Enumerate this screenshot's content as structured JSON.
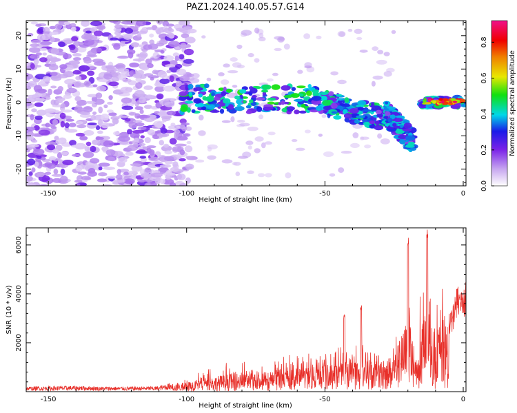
{
  "title": "PAZ1.2024.140.05.57.G14",
  "colors": {
    "snr_line": "#e8302a",
    "spectro_purple": "#7a22e8",
    "spectro_light": "#d4b8f4",
    "axis": "#000000"
  },
  "chart_data": [
    {
      "type": "heatmap",
      "title": "",
      "xlabel": "Height of straight line (km)",
      "ylabel": "Frequency (Hz)",
      "xlim": [
        -158,
        1
      ],
      "ylim": [
        -25,
        24.5
      ],
      "xticks": [
        -150,
        -100,
        -50,
        0
      ],
      "yticks": [
        -20,
        -10,
        0,
        10,
        20
      ],
      "colorbar": {
        "label": "Normalized spectral amplitude",
        "range": [
          0.0,
          0.92
        ],
        "ticks": [
          0.0,
          0.2,
          0.4,
          0.6,
          0.8
        ],
        "colormap": "rainbow (white-purple-blue-cyan-green-yellow-red-magenta)"
      },
      "features": [
        {
          "x_range": [
            -158,
            -102
          ],
          "freq_range": [
            -25,
            24
          ],
          "amplitude": "low, scattered noise"
        },
        {
          "x_range": [
            -102,
            -55
          ],
          "freq_center": 1,
          "freq_halfwidth": 4,
          "amplitude_peak": 0.4
        },
        {
          "x_range": [
            -55,
            -28
          ],
          "freq_center_start": 1,
          "freq_center_end": -5,
          "amplitude_peak": 0.35
        },
        {
          "x_range": [
            -28,
            -18
          ],
          "freq_center_start": -3,
          "freq_center_end": -12,
          "amplitude_peak": 0.3
        },
        {
          "x_range": [
            -15,
            1
          ],
          "freq_center": 0,
          "freq_halfwidth": 1.5,
          "amplitude_peak": 0.92
        }
      ]
    },
    {
      "type": "line",
      "title": "",
      "xlabel": "Height of straight line (km)",
      "ylabel": "SNR (10 * v/v)",
      "xlim": [
        -158,
        1
      ],
      "ylim": [
        0,
        6700
      ],
      "xticks": [
        -150,
        -100,
        -50,
        0
      ],
      "yticks": [
        2000,
        4000,
        6000
      ],
      "series": [
        {
          "x": [
            -158,
            -150,
            -140,
            -130,
            -120,
            -110,
            -105,
            -100,
            -95,
            -90,
            -85,
            -80,
            -75,
            -70,
            -65,
            -60,
            -55,
            -50,
            -45,
            -40,
            -35,
            -30,
            -25,
            -22,
            -20,
            -19,
            -17,
            -15,
            -13,
            -12,
            -11,
            -10,
            -8,
            -6,
            -4,
            -2,
            0,
            1
          ],
          "values": [
            130,
            140,
            150,
            130,
            130,
            140,
            250,
            380,
            520,
            600,
            700,
            760,
            720,
            780,
            820,
            900,
            950,
            1050,
            1150,
            1300,
            1250,
            1150,
            1450,
            2300,
            3000,
            2500,
            900,
            2700,
            3300,
            2600,
            1200,
            2100,
            2900,
            2700,
            3100,
            4000,
            3900,
            4100
          ]
        }
      ],
      "peaks": [
        {
          "x": -43,
          "value": 3150
        },
        {
          "x": -37,
          "value": 3550
        },
        {
          "x": -20,
          "value": 6450
        },
        {
          "x": -13,
          "value": 6650
        }
      ]
    }
  ]
}
